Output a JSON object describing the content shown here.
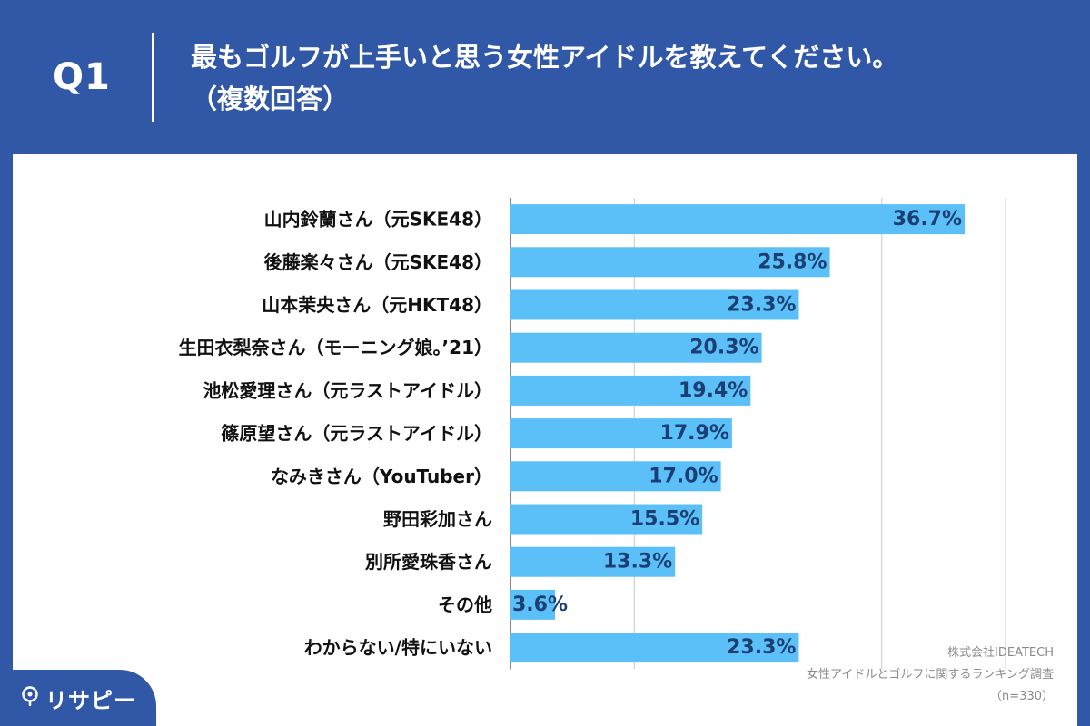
{
  "header": {
    "q_label": "Q1",
    "question_line1": "最もゴルフが上手いと思う女性アイドルを教えてください。",
    "question_line2": "（複数回答）"
  },
  "source": {
    "company": "株式会社IDEATECH",
    "survey": "女性アイドルとゴルフに関するランキング調査",
    "n": "（n=330）"
  },
  "logo": {
    "text": "リサピー",
    "icon": "location-pin-icon"
  },
  "colors": {
    "background": "#3158a6",
    "bar": "#5bc0f8",
    "value_text": "#1c3f73"
  },
  "chart_data": {
    "type": "bar",
    "orientation": "horizontal",
    "categories": [
      "山内鈴蘭さん（元SKE48）",
      "後藤楽々さん（元SKE48）",
      "山本茉央さん（元HKT48）",
      "生田衣梨奈さん（モーニング娘。’21）",
      "池松愛理さん（元ラストアイドル）",
      "篠原望さん（元ラストアイドル）",
      "なみきさん（YouTuber）",
      "野田彩加さん",
      "別所愛珠香さん",
      "その他",
      "わからない/特にいない"
    ],
    "values": [
      36.7,
      25.8,
      23.3,
      20.3,
      19.4,
      17.9,
      17.0,
      15.5,
      13.3,
      3.6,
      23.3
    ],
    "value_labels": [
      "36.7%",
      "25.8%",
      "23.3%",
      "20.3%",
      "19.4%",
      "17.9%",
      "17.0%",
      "15.5%",
      "13.3%",
      "3.6%",
      "23.3%"
    ],
    "xlim": [
      0,
      40
    ],
    "grid_step": 10,
    "grid": true,
    "title": "",
    "xlabel": "",
    "ylabel": ""
  }
}
